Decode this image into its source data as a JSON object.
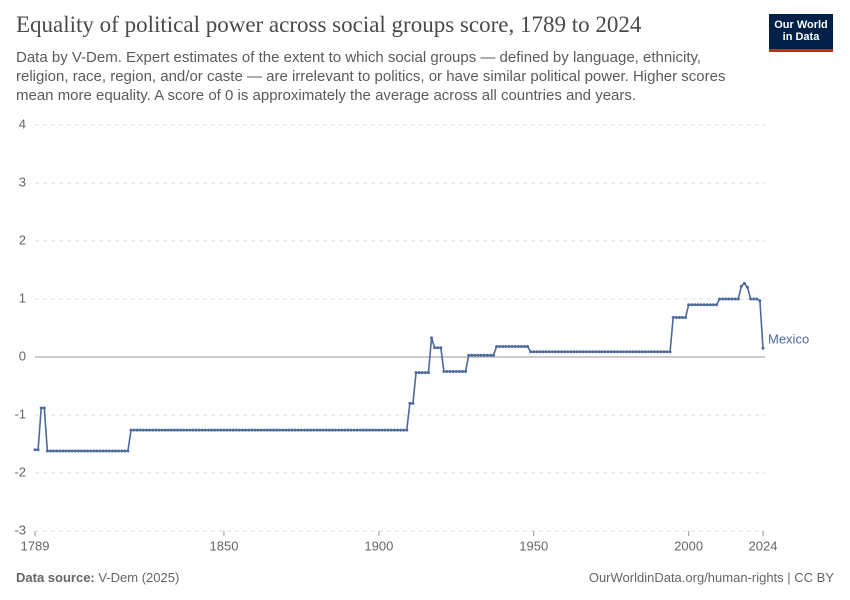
{
  "logo": "Our World in Data",
  "source_label": "Data source:",
  "source": "V-Dem (2025)",
  "license": "OurWorldinData.org/human-rights | CC BY",
  "chart_data": {
    "type": "line",
    "title": "Equality of political power across social groups score, 1789 to 2024",
    "subtitle": "Data by V-Dem. Expert estimates of the extent to which social groups — defined by language, ethnicity, religion, race, region, and/or caste — are irrelevant to politics, or have similar political power. Higher scores mean more equality. A score of 0 is approximately the average across all countries and years.",
    "xlim": [
      1789,
      2024
    ],
    "xticks": [
      1789,
      1850,
      1900,
      1950,
      2000,
      2024
    ],
    "ylim": [
      -3,
      4
    ],
    "yticks": [
      -3,
      -2,
      -1,
      0,
      1,
      2,
      3,
      4
    ],
    "grid": true,
    "x": [
      1789,
      1790,
      1791,
      1792,
      1793,
      1794,
      1795,
      1796,
      1797,
      1798,
      1799,
      1800,
      1801,
      1802,
      1803,
      1804,
      1805,
      1806,
      1807,
      1808,
      1809,
      1810,
      1811,
      1812,
      1813,
      1814,
      1815,
      1816,
      1817,
      1818,
      1819,
      1820,
      1821,
      1822,
      1823,
      1824,
      1825,
      1826,
      1827,
      1828,
      1829,
      1830,
      1831,
      1832,
      1833,
      1834,
      1835,
      1836,
      1837,
      1838,
      1839,
      1840,
      1841,
      1842,
      1843,
      1844,
      1845,
      1846,
      1847,
      1848,
      1849,
      1850,
      1851,
      1852,
      1853,
      1854,
      1855,
      1856,
      1857,
      1858,
      1859,
      1860,
      1861,
      1862,
      1863,
      1864,
      1865,
      1866,
      1867,
      1868,
      1869,
      1870,
      1871,
      1872,
      1873,
      1874,
      1875,
      1876,
      1877,
      1878,
      1879,
      1880,
      1881,
      1882,
      1883,
      1884,
      1885,
      1886,
      1887,
      1888,
      1889,
      1890,
      1891,
      1892,
      1893,
      1894,
      1895,
      1896,
      1897,
      1898,
      1899,
      1900,
      1901,
      1902,
      1903,
      1904,
      1905,
      1906,
      1907,
      1908,
      1909,
      1910,
      1911,
      1912,
      1913,
      1914,
      1915,
      1916,
      1917,
      1918,
      1919,
      1920,
      1921,
      1922,
      1923,
      1924,
      1925,
      1926,
      1927,
      1928,
      1929,
      1930,
      1931,
      1932,
      1933,
      1934,
      1935,
      1936,
      1937,
      1938,
      1939,
      1940,
      1941,
      1942,
      1943,
      1944,
      1945,
      1946,
      1947,
      1948,
      1949,
      1950,
      1951,
      1952,
      1953,
      1954,
      1955,
      1956,
      1957,
      1958,
      1959,
      1960,
      1961,
      1962,
      1963,
      1964,
      1965,
      1966,
      1967,
      1968,
      1969,
      1970,
      1971,
      1972,
      1973,
      1974,
      1975,
      1976,
      1977,
      1978,
      1979,
      1980,
      1981,
      1982,
      1983,
      1984,
      1985,
      1986,
      1987,
      1988,
      1989,
      1990,
      1991,
      1992,
      1993,
      1994,
      1995,
      1996,
      1997,
      1998,
      1999,
      2000,
      2001,
      2002,
      2003,
      2004,
      2005,
      2006,
      2007,
      2008,
      2009,
      2010,
      2011,
      2012,
      2013,
      2014,
      2015,
      2016,
      2017,
      2018,
      2019,
      2020,
      2021,
      2022,
      2023,
      2024
    ],
    "series": [
      {
        "name": "Mexico",
        "color": "#4c6a9c",
        "values": [
          -1.6,
          -1.6,
          -0.88,
          -0.88,
          -1.62,
          -1.62,
          -1.62,
          -1.62,
          -1.62,
          -1.62,
          -1.62,
          -1.62,
          -1.62,
          -1.62,
          -1.62,
          -1.62,
          -1.62,
          -1.62,
          -1.62,
          -1.62,
          -1.62,
          -1.62,
          -1.62,
          -1.62,
          -1.62,
          -1.62,
          -1.62,
          -1.62,
          -1.62,
          -1.62,
          -1.62,
          -1.26,
          -1.26,
          -1.26,
          -1.26,
          -1.26,
          -1.26,
          -1.26,
          -1.26,
          -1.26,
          -1.26,
          -1.26,
          -1.26,
          -1.26,
          -1.26,
          -1.26,
          -1.26,
          -1.26,
          -1.26,
          -1.26,
          -1.26,
          -1.26,
          -1.26,
          -1.26,
          -1.26,
          -1.26,
          -1.26,
          -1.26,
          -1.26,
          -1.26,
          -1.26,
          -1.26,
          -1.26,
          -1.26,
          -1.26,
          -1.26,
          -1.26,
          -1.26,
          -1.26,
          -1.26,
          -1.26,
          -1.26,
          -1.26,
          -1.26,
          -1.26,
          -1.26,
          -1.26,
          -1.26,
          -1.26,
          -1.26,
          -1.26,
          -1.26,
          -1.26,
          -1.26,
          -1.26,
          -1.26,
          -1.26,
          -1.26,
          -1.26,
          -1.26,
          -1.26,
          -1.26,
          -1.26,
          -1.26,
          -1.26,
          -1.26,
          -1.26,
          -1.26,
          -1.26,
          -1.26,
          -1.26,
          -1.26,
          -1.26,
          -1.26,
          -1.26,
          -1.26,
          -1.26,
          -1.26,
          -1.26,
          -1.26,
          -1.26,
          -1.26,
          -1.26,
          -1.26,
          -1.26,
          -1.26,
          -1.26,
          -1.26,
          -1.26,
          -1.26,
          -1.26,
          -0.8,
          -0.8,
          -0.27,
          -0.27,
          -0.27,
          -0.27,
          -0.27,
          0.33,
          0.16,
          0.16,
          0.16,
          -0.25,
          -0.25,
          -0.25,
          -0.25,
          -0.25,
          -0.25,
          -0.25,
          -0.25,
          0.03,
          0.03,
          0.03,
          0.03,
          0.03,
          0.03,
          0.03,
          0.03,
          0.03,
          0.18,
          0.18,
          0.18,
          0.18,
          0.18,
          0.18,
          0.18,
          0.18,
          0.18,
          0.18,
          0.18,
          0.09,
          0.09,
          0.09,
          0.09,
          0.09,
          0.09,
          0.09,
          0.09,
          0.09,
          0.09,
          0.09,
          0.09,
          0.09,
          0.09,
          0.09,
          0.09,
          0.09,
          0.09,
          0.09,
          0.09,
          0.09,
          0.09,
          0.09,
          0.09,
          0.09,
          0.09,
          0.09,
          0.09,
          0.09,
          0.09,
          0.09,
          0.09,
          0.09,
          0.09,
          0.09,
          0.09,
          0.09,
          0.09,
          0.09,
          0.09,
          0.09,
          0.09,
          0.09,
          0.09,
          0.09,
          0.09,
          0.68,
          0.68,
          0.68,
          0.68,
          0.68,
          0.9,
          0.9,
          0.9,
          0.9,
          0.9,
          0.9,
          0.9,
          0.9,
          0.9,
          0.9,
          1.0,
          1.0,
          1.0,
          1.0,
          1.0,
          1.0,
          1.0,
          1.22,
          1.27,
          1.2,
          1.0,
          1.0,
          1.0,
          0.97,
          0.15
        ]
      }
    ]
  }
}
